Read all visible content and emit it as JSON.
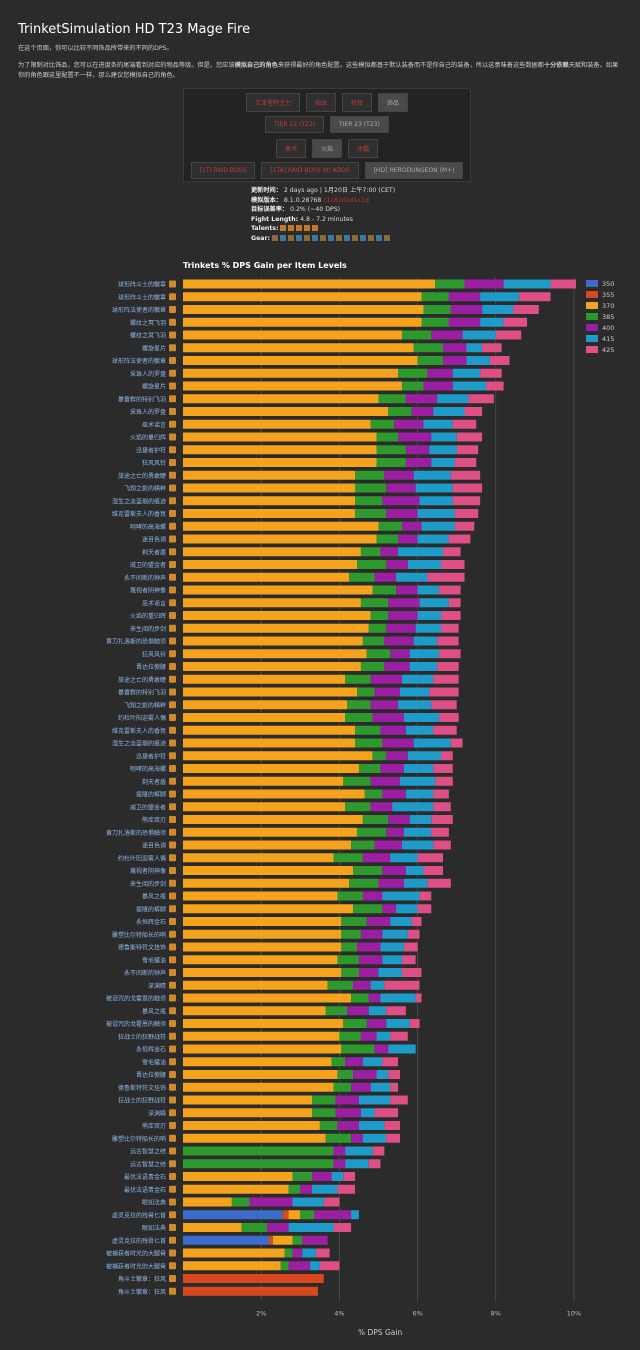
{
  "page": {
    "title": "TrinketSimulation HD T23 Mage Fire",
    "intro": "在这个页面，你可以比较不同饰品所带来的不同的DPS。",
    "para2a": "为了限制对比饰品，您可以在进度条的尾端看到对应的物品等级。但是，您应该",
    "para2b": "模拟自己的角色",
    "para2c": "来获得最好的角色配置。这些模拟都基于默认装备而不是你自己的装备，所以这意味着这些数据都",
    "para2d": "十分依赖",
    "para2e": "天赋和装备。如果你的角色跟这里配置不一样，那么建议您模拟自己的角色。"
  },
  "buttons": {
    "row1": [
      "艾泽里特之力",
      "指纹",
      "特效",
      "饰品"
    ],
    "row2": [
      "TIER 22 (T22)",
      "TIER 23 (T23)"
    ],
    "row3": [
      "奥术",
      "火焰",
      "冰霜"
    ],
    "row4": [
      "[1T] RAID BOSS",
      "[1TA] RAID BOSS W/ ADDS",
      "[HD] HERODUNGEON (M+)"
    ]
  },
  "meta": {
    "updated_label": "更新时间：",
    "updated_value": "2 days ago | 1月20日 上午7:00 (CET)",
    "sim_label": "模拟版本：",
    "sim_value": "8.1.0.28768",
    "sim_hash": "c1c81d1d1c1d",
    "err_label": "目标误差率：",
    "err_value": "0.2% (~40 DPS)",
    "fight_label": "Fight Length:",
    "fight_value": "4.8 - 7.2 minutes",
    "talents_label": "Talents:",
    "gear_label": "Gear:"
  },
  "chart_data": {
    "type": "bar",
    "stacked": true,
    "orientation": "horizontal",
    "title": "Trinkets % DPS Gain per Item Levels",
    "xlabel": "% DPS Gain",
    "xticks": [
      "2%",
      "4%",
      "6%",
      "8%",
      "10%"
    ],
    "xlim": [
      0,
      11.5
    ],
    "grid": true,
    "legend_position": "right",
    "levels": [
      "350",
      "355",
      "370",
      "385",
      "400",
      "415",
      "425"
    ],
    "colors": {
      "350": "#3c6cc9",
      "355": "#d9471f",
      "370": "#f5a31c",
      "385": "#2e9a2e",
      "400": "#9b1ea3",
      "415": "#1e9bc9",
      "425": "#dd4f85"
    },
    "trinkets": [
      {
        "name": "球形阵斗士的徽章",
        "values": {
          "370": 6.45,
          "385": 0.75,
          "400": 1.0,
          "415": 1.2,
          "425": 0.65
        }
      },
      {
        "name": "球形阵斗士的徽章",
        "values": {
          "370": 6.1,
          "385": 0.7,
          "400": 0.8,
          "415": 1.0,
          "425": 0.8
        }
      },
      {
        "name": "球形阵法使者的徽章",
        "values": {
          "370": 6.15,
          "385": 0.7,
          "400": 0.8,
          "415": 0.8,
          "425": 0.65
        }
      },
      {
        "name": "螺纹之冥飞羽",
        "values": {
          "370": 6.1,
          "385": 0.7,
          "400": 0.8,
          "415": 0.6,
          "425": 0.6
        }
      },
      {
        "name": "螺纹之冥飞羽",
        "values": {
          "370": 5.6,
          "385": 0.75,
          "400": 0.8,
          "415": 0.85,
          "425": 0.65
        }
      },
      {
        "name": "螺旋星片",
        "values": {
          "370": 5.9,
          "385": 0.75,
          "400": 0.6,
          "415": 0.4,
          "425": 0.5
        }
      },
      {
        "name": "球形阵法使者的徽章",
        "values": {
          "370": 6.0,
          "385": 0.65,
          "400": 0.6,
          "415": 0.6,
          "425": 0.5
        }
      },
      {
        "name": "采珠人的罗盘",
        "values": {
          "370": 5.5,
          "385": 0.75,
          "400": 0.65,
          "415": 0.7,
          "425": 0.55
        }
      },
      {
        "name": "螺旋星片",
        "values": {
          "370": 5.6,
          "385": 0.55,
          "400": 0.75,
          "415": 0.85,
          "425": 0.45
        }
      },
      {
        "name": "暴雷群的特别飞羽",
        "values": {
          "370": 5.0,
          "385": 0.7,
          "400": 0.8,
          "415": 0.8,
          "425": 0.65
        }
      },
      {
        "name": "采珠人的罗盘",
        "values": {
          "370": 5.25,
          "385": 0.6,
          "400": 0.55,
          "415": 0.8,
          "425": 0.45
        }
      },
      {
        "name": "巫术谣言",
        "values": {
          "370": 4.8,
          "385": 0.6,
          "400": 0.75,
          "415": 0.75,
          "425": 0.6
        }
      },
      {
        "name": "火焰的重归辉",
        "values": {
          "370": 4.95,
          "385": 0.55,
          "400": 0.85,
          "415": 0.65,
          "425": 0.65
        }
      },
      {
        "name": "迅捷者护符",
        "values": {
          "370": 4.95,
          "385": 0.75,
          "400": 0.6,
          "415": 0.7,
          "425": 0.55
        }
      },
      {
        "name": "狂风风铃",
        "values": {
          "370": 4.95,
          "385": 0.75,
          "400": 0.65,
          "415": 0.6,
          "425": 0.55
        }
      },
      {
        "name": "旅途之亡的勇敢睫",
        "values": {
          "370": 4.4,
          "385": 0.75,
          "400": 0.75,
          "415": 0.95,
          "425": 0.75
        }
      },
      {
        "name": "飞翔之影的精粹",
        "values": {
          "370": 4.4,
          "385": 0.8,
          "400": 0.75,
          "415": 0.95,
          "425": 0.75
        }
      },
      {
        "name": "湿生之淡蓝烟的痕迹",
        "values": {
          "370": 4.4,
          "385": 0.7,
          "400": 0.95,
          "415": 0.85,
          "425": 0.7
        }
      },
      {
        "name": "维克雷斯夫人的香氛",
        "values": {
          "370": 4.4,
          "385": 0.8,
          "400": 0.8,
          "415": 0.95,
          "425": 0.6
        }
      },
      {
        "name": "咆哮的高海螺",
        "values": {
          "370": 5.0,
          "385": 0.6,
          "400": 0.5,
          "415": 0.85,
          "425": 0.5
        }
      },
      {
        "name": "迷目色调",
        "values": {
          "370": 4.95,
          "385": 0.55,
          "400": 0.5,
          "415": 0.8,
          "425": 0.55
        }
      },
      {
        "name": "剃天者盾",
        "values": {
          "370": 4.55,
          "385": 0.5,
          "400": 0.45,
          "415": 1.15,
          "425": 0.45
        }
      },
      {
        "name": "戚卫的盟金者",
        "values": {
          "370": 4.45,
          "385": 0.75,
          "400": 0.55,
          "415": 0.85,
          "425": 0.6
        }
      },
      {
        "name": "永不间断的钟声",
        "values": {
          "370": 4.25,
          "385": 0.65,
          "400": 0.55,
          "415": 0.8,
          "425": 0.95
        }
      },
      {
        "name": "蔑视者阴神像",
        "values": {
          "370": 4.85,
          "385": 0.6,
          "400": 0.55,
          "415": 0.55,
          "425": 0.55
        }
      },
      {
        "name": "巫术谣言",
        "values": {
          "370": 4.55,
          "385": 0.7,
          "400": 0.8,
          "415": 0.75,
          "425": 0.3
        }
      },
      {
        "name": "火焰的重归辉",
        "values": {
          "370": 4.8,
          "385": 0.45,
          "400": 0.75,
          "415": 0.6,
          "425": 0.5
        }
      },
      {
        "name": "来生阅的步剑",
        "values": {
          "370": 4.75,
          "385": 0.45,
          "400": 0.75,
          "415": 0.65,
          "425": 0.45
        }
      },
      {
        "name": "黄刀扎洛斯的恐惧触须",
        "values": {
          "370": 4.6,
          "385": 0.55,
          "400": 0.75,
          "415": 0.6,
          "425": 0.55
        }
      },
      {
        "name": "狂风风铃",
        "values": {
          "370": 4.7,
          "385": 0.6,
          "400": 0.5,
          "415": 0.75,
          "425": 0.55
        }
      },
      {
        "name": "晋达拉傲腰",
        "values": {
          "370": 4.55,
          "385": 0.6,
          "400": 0.65,
          "415": 0.7,
          "425": 0.55
        }
      },
      {
        "name": "旅途之亡的勇敢睫",
        "values": {
          "370": 4.15,
          "385": 0.65,
          "400": 0.8,
          "415": 0.8,
          "425": 0.65
        }
      },
      {
        "name": "暴雷群的特别飞羽",
        "values": {
          "370": 4.45,
          "385": 0.45,
          "400": 0.65,
          "415": 0.75,
          "425": 0.75
        }
      },
      {
        "name": "飞翔之影的精粹",
        "values": {
          "370": 4.2,
          "385": 0.6,
          "400": 0.7,
          "415": 0.85,
          "425": 0.65
        }
      },
      {
        "name": "约杜叶阳迎雾人偶",
        "values": {
          "370": 4.15,
          "385": 0.7,
          "400": 0.8,
          "415": 0.9,
          "425": 0.5
        }
      },
      {
        "name": "维克雷斯夫人的香氛",
        "values": {
          "370": 4.4,
          "385": 0.65,
          "400": 0.65,
          "415": 0.7,
          "425": 0.6
        }
      },
      {
        "name": "湿生之淡蓝烟的痕迹",
        "values": {
          "370": 4.4,
          "385": 0.7,
          "400": 0.8,
          "415": 0.95,
          "425": 0.3
        }
      },
      {
        "name": "迅捷者护符",
        "values": {
          "370": 4.85,
          "385": 0.35,
          "400": 0.55,
          "415": 0.85,
          "425": 0.3
        }
      },
      {
        "name": "咆哮的高海螺",
        "values": {
          "370": 4.5,
          "385": 0.55,
          "400": 0.6,
          "415": 0.75,
          "425": 0.5
        }
      },
      {
        "name": "剃天者盾",
        "values": {
          "370": 4.1,
          "385": 0.7,
          "400": 0.75,
          "415": 0.9,
          "425": 0.45
        }
      },
      {
        "name": "提隆的裤脚",
        "values": {
          "370": 4.65,
          "385": 0.45,
          "400": 0.6,
          "415": 0.7,
          "425": 0.4
        }
      },
      {
        "name": "戚卫的盟金者",
        "values": {
          "370": 4.15,
          "385": 0.65,
          "400": 0.55,
          "415": 1.05,
          "425": 0.45
        }
      },
      {
        "name": "熊库双刃",
        "values": {
          "370": 4.6,
          "385": 0.65,
          "400": 0.55,
          "415": 0.55,
          "425": 0.55
        }
      },
      {
        "name": "黄刀扎洛斯的恐惧触须",
        "values": {
          "370": 4.45,
          "385": 0.75,
          "400": 0.45,
          "415": 0.7,
          "425": 0.45
        }
      },
      {
        "name": "迷目色调",
        "values": {
          "370": 4.3,
          "385": 0.6,
          "400": 0.7,
          "415": 0.8,
          "425": 0.45
        }
      },
      {
        "name": "约杜叶阳迎雾人偶",
        "values": {
          "370": 3.85,
          "385": 0.75,
          "400": 0.7,
          "415": 0.7,
          "425": 0.65
        }
      },
      {
        "name": "蔑视者阴神像",
        "values": {
          "370": 4.35,
          "385": 0.75,
          "400": 0.6,
          "415": 0.45,
          "425": 0.5
        }
      },
      {
        "name": "来生阅的步剑",
        "values": {
          "370": 4.25,
          "385": 0.75,
          "400": 0.65,
          "415": 0.6,
          "425": 0.6
        }
      },
      {
        "name": "暴风之瓶",
        "values": {
          "370": 3.95,
          "385": 0.65,
          "400": 0.5,
          "415": 0.95,
          "425": 0.3
        }
      },
      {
        "name": "提隆的裤脚",
        "values": {
          "370": 4.35,
          "385": 0.75,
          "400": 0.35,
          "415": 0.55,
          "425": 0.35
        }
      },
      {
        "name": "永恒辉金石",
        "values": {
          "370": 4.05,
          "385": 0.65,
          "400": 0.6,
          "415": 0.55,
          "425": 0.25
        }
      },
      {
        "name": "雕塑比尔特船长的哨",
        "values": {
          "370": 4.05,
          "385": 0.5,
          "400": 0.55,
          "415": 0.65,
          "425": 0.3
        }
      },
      {
        "name": "德鲁斯特符文挂饰",
        "values": {
          "370": 4.05,
          "385": 0.4,
          "400": 0.6,
          "415": 0.6,
          "425": 0.35
        }
      },
      {
        "name": "雪毛罐油",
        "values": {
          "370": 3.95,
          "385": 0.55,
          "400": 0.6,
          "415": 0.5,
          "425": 0.35
        }
      },
      {
        "name": "永不间断的钟声",
        "values": {
          "370": 4.05,
          "385": 0.45,
          "400": 0.5,
          "415": 0.6,
          "425": 0.5
        }
      },
      {
        "name": "深渊睛",
        "values": {
          "370": 3.7,
          "385": 0.65,
          "400": 0.45,
          "415": 0.35,
          "425": 0.9
        }
      },
      {
        "name": "被诅咒的戈霍恩的触须",
        "values": {
          "370": 4.3,
          "385": 0.45,
          "400": 0.3,
          "415": 0.9,
          "425": 0.15
        }
      },
      {
        "name": "暴风之瓶",
        "values": {
          "370": 3.65,
          "385": 0.55,
          "400": 0.55,
          "415": 0.45,
          "425": 0.5
        }
      },
      {
        "name": "被诅咒的戈霍恩的触须",
        "values": {
          "370": 4.1,
          "385": 0.6,
          "400": 0.5,
          "415": 0.6,
          "425": 0.25
        }
      },
      {
        "name": "狂战士的狂野战符",
        "values": {
          "370": 4.0,
          "385": 0.55,
          "400": 0.4,
          "415": 0.35,
          "425": 0.45
        }
      },
      {
        "name": "永恒辉金石",
        "values": {
          "370": 4.05,
          "385": 0.85,
          "400": 0.35,
          "415": 0.7,
          "425": 0.0
        }
      },
      {
        "name": "雪毛罐油",
        "values": {
          "370": 3.8,
          "385": 0.35,
          "400": 0.45,
          "415": 0.5,
          "425": 0.4
        }
      },
      {
        "name": "晋达拉傲腰",
        "values": {
          "370": 3.95,
          "385": 0.4,
          "400": 0.6,
          "415": 0.3,
          "425": 0.3
        }
      },
      {
        "name": "德鲁斯特符文挂饰",
        "values": {
          "370": 3.85,
          "385": 0.45,
          "400": 0.5,
          "415": 0.5,
          "425": 0.2
        }
      },
      {
        "name": "狂战士的狂野战符",
        "values": {
          "370": 3.3,
          "385": 0.6,
          "400": 0.6,
          "415": 0.8,
          "425": 0.45
        }
      },
      {
        "name": "深渊睛",
        "values": {
          "370": 3.3,
          "385": 0.6,
          "400": 0.65,
          "415": 0.35,
          "425": 0.6
        }
      },
      {
        "name": "熊库双刃",
        "values": {
          "370": 3.5,
          "385": 0.45,
          "400": 0.55,
          "415": 0.65,
          "425": 0.4
        }
      },
      {
        "name": "雕塑比尔特船长的哨",
        "values": {
          "370": 3.65,
          "385": 0.65,
          "400": 0.3,
          "415": 0.6,
          "425": 0.35
        }
      },
      {
        "name": "远古智慧之结",
        "values": {
          "370": 0.0,
          "385": 3.85,
          "400": 0.3,
          "415": 0.7,
          "425": 0.3
        }
      },
      {
        "name": "远古智慧之结",
        "values": {
          "370": 0.0,
          "385": 3.85,
          "400": 0.3,
          "415": 0.6,
          "425": 0.3
        }
      },
      {
        "name": "最优法语青金石",
        "values": {
          "370": 2.8,
          "385": 0.5,
          "400": 0.5,
          "415": 0.3,
          "425": 0.3
        }
      },
      {
        "name": "最优法语青金石",
        "values": {
          "370": 2.7,
          "385": 0.3,
          "400": 0.3,
          "415": 0.65,
          "425": 0.45
        }
      },
      {
        "name": "眼如法典",
        "values": {
          "370": 1.25,
          "385": 0.45,
          "400": 1.1,
          "415": 0.8,
          "425": 0.4
        }
      },
      {
        "name": "虚灵克拉的残骨匕首",
        "350": 2.55,
        "values": {
          "350": 2.55,
          "355": 0.15,
          "370": 0.3,
          "385": 0.35,
          "400": 0.95,
          "415": 0.2,
          "425": 0.0
        }
      },
      {
        "name": "眼如法典",
        "values": {
          "370": 1.5,
          "385": 0.65,
          "400": 0.55,
          "415": 1.15,
          "425": 0.45
        }
      },
      {
        "name": "虚灵克拉的残骨匕首",
        "values": {
          "350": 2.2,
          "355": 0.1,
          "370": 0.5,
          "385": 0.25,
          "400": 0.65,
          "425": 0.0
        }
      },
      {
        "name": "被捕获者时光的大腿骨",
        "values": {
          "370": 2.6,
          "385": 0.2,
          "400": 0.25,
          "415": 0.35,
          "425": 0.35
        }
      },
      {
        "name": "被捕获者时光的大腿骨",
        "values": {
          "370": 2.5,
          "385": 0.2,
          "400": 0.55,
          "415": 0.25,
          "425": 0.5
        }
      },
      {
        "name": "角斗士徽章：狂风",
        "values": {
          "355": 3.6
        }
      },
      {
        "name": "角斗士徽章：狂风",
        "values": {
          "355": 3.45
        }
      }
    ]
  }
}
